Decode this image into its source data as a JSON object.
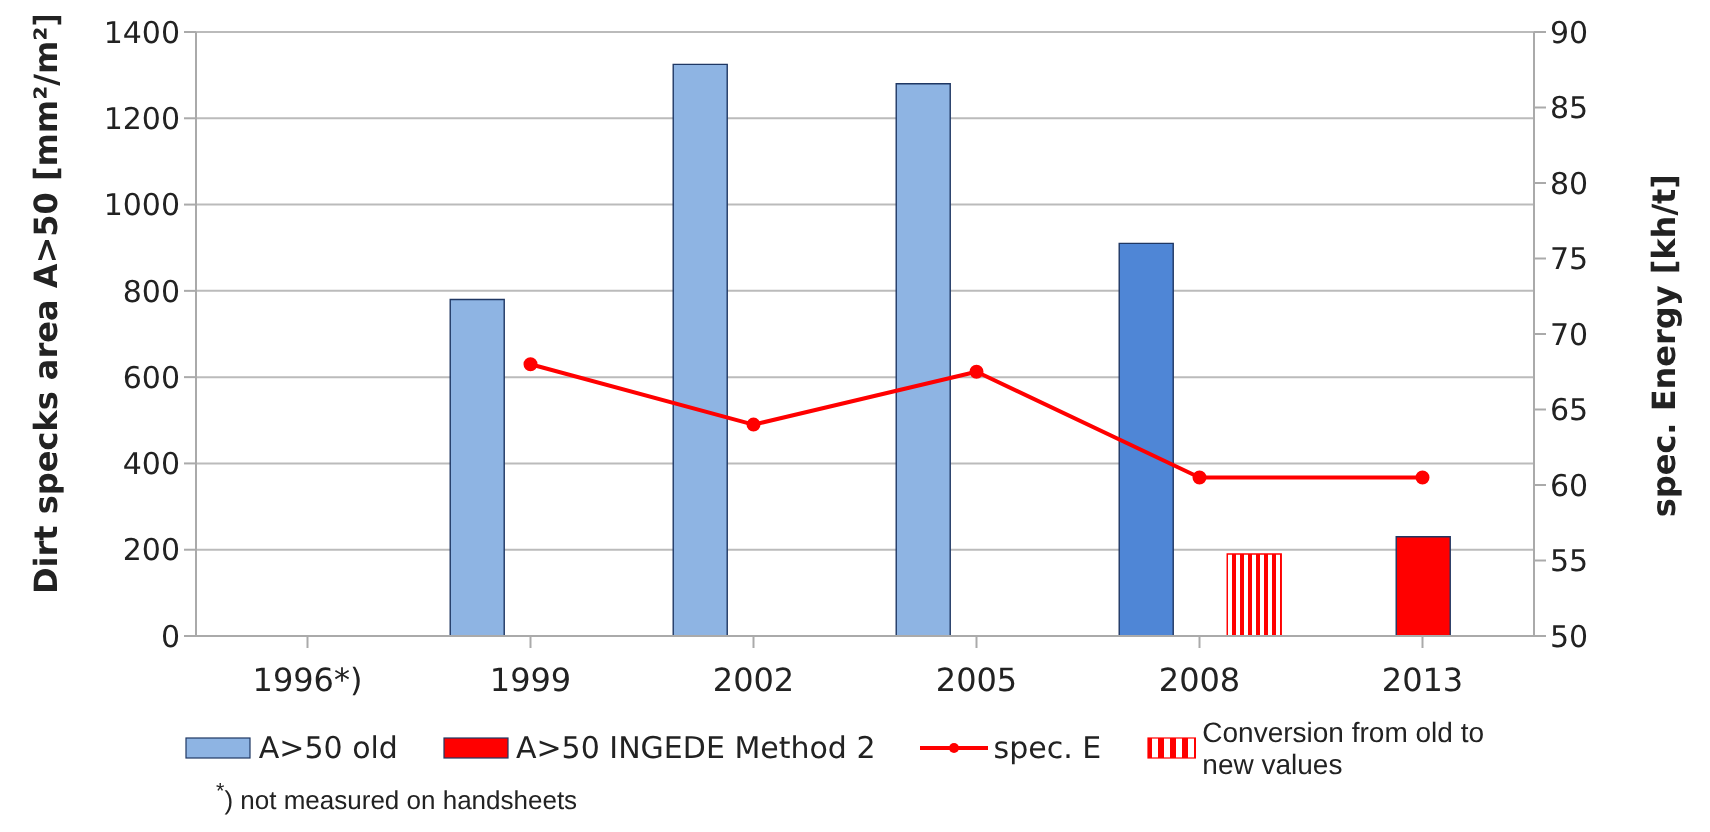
{
  "chart_data": {
    "type": "bar",
    "ylabel": "Dirt specks area A>50 [mm²/m²]",
    "y2label": "spec. Energy [kh/t]",
    "categories": [
      "1996*)",
      "1999",
      "2002",
      "2005",
      "2008",
      "2013"
    ],
    "series": [
      {
        "name": "A>50 old",
        "color": "#8eb4e3",
        "colors": [
          "#8eb4e3",
          "#8eb4e3",
          "#8eb4e3",
          "#8eb4e3",
          "#4f86d6",
          "#8eb4e3"
        ],
        "values": [
          null,
          780,
          1325,
          1280,
          910,
          null
        ]
      },
      {
        "name": "A>50 INGEDE Method 2",
        "color": "#ff0000",
        "values": [
          null,
          null,
          null,
          null,
          null,
          230
        ]
      },
      {
        "name": "spec. E",
        "type": "line",
        "axis": "y2",
        "color": "#ff0000",
        "values": [
          null,
          68,
          64,
          67.5,
          60.5,
          60.5
        ]
      },
      {
        "name": "Conversion from old to new values",
        "color": "#ff0000",
        "values": [
          null,
          null,
          null,
          null,
          190,
          null
        ]
      }
    ],
    "ylim": [
      0,
      1400
    ],
    "yticks": [
      0,
      200,
      400,
      600,
      800,
      1000,
      1200,
      1400
    ],
    "y2lim": [
      50,
      90
    ],
    "y2ticks": [
      50,
      55,
      60,
      65,
      70,
      75,
      80,
      85,
      90
    ],
    "grid": "y",
    "legend": "bottom",
    "marker": "circle",
    "annotations": [
      "$^{*}$) not measured on handsheets"
    ]
  }
}
